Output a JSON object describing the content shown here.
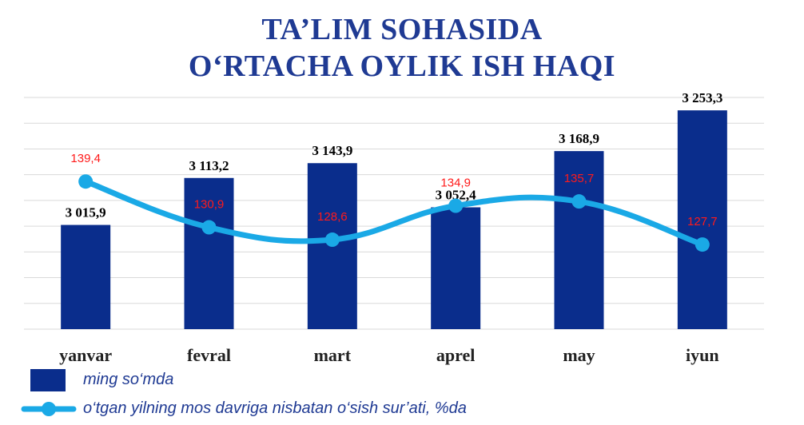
{
  "title_line1": "TA’LIM SOHASIDA",
  "title_line2": "O‘RTACHA OYLIK ISH HAQI",
  "legend": {
    "bar_label": "ming so‘mda",
    "line_label": "o‘tgan yilning mos davriga nisbatan o‘sish sur’ati, %da"
  },
  "colors": {
    "bar": "#0a2d8c",
    "line": "#1aa9e6",
    "line_label": "#ff1a1a",
    "grid": "#d9d9d9",
    "title": "#1f3a93"
  },
  "chart_data": {
    "type": "bar",
    "categories": [
      "yanvar",
      "fevral",
      "mart",
      "aprel",
      "may",
      "iyun"
    ],
    "series": [
      {
        "name": "ming so‘mda",
        "type": "bar",
        "values": [
          3015.9,
          3113.2,
          3143.9,
          3052.4,
          3168.9,
          3253.3
        ],
        "labels": [
          "3 015,9",
          "3 113,2",
          "3 143,9",
          "3 052,4",
          "3 168,9",
          "3 253,3"
        ]
      },
      {
        "name": "o‘tgan yilning mos davriga nisbatan o‘sish sur’ati, %da",
        "type": "line",
        "values": [
          139.4,
          130.9,
          128.6,
          134.9,
          135.7,
          127.7
        ],
        "labels": [
          "139,4",
          "130,9",
          "128,6",
          "134,9",
          "135,7",
          "127,7"
        ]
      }
    ],
    "grid": true,
    "legend_position": "bottom-left"
  }
}
